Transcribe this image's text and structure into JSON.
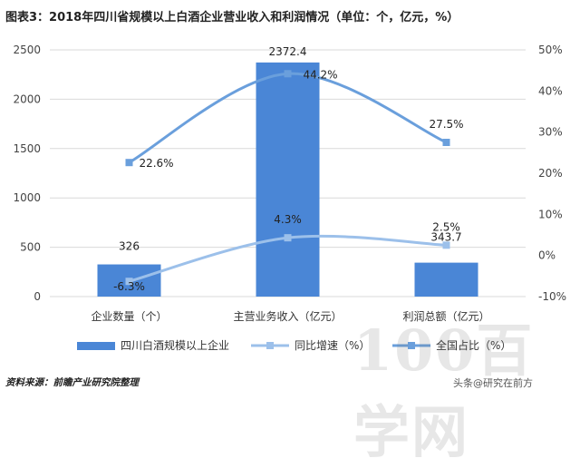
{
  "title": "图表3：2018年四川省规模以上白酒企业营业收入和利润情况（单位：个，亿元，%）",
  "source": "资料来源：前瞻产业研究院整理",
  "watermark": {
    "site": "100百学网",
    "author": "头条@研究在前方"
  },
  "chart_data": {
    "type": "bar",
    "categories": [
      "企业数量（个）",
      "主营业务收入（亿元）",
      "利润总额（亿元）"
    ],
    "y_left": {
      "lim": [
        0,
        2500
      ],
      "ticks": [
        "0",
        "500",
        "1000",
        "1500",
        "2000",
        "2500"
      ]
    },
    "y_right": {
      "lim": [
        -10,
        50
      ],
      "ticks": [
        "-10%",
        "0%",
        "10%",
        "20%",
        "30%",
        "40%",
        "50%"
      ]
    },
    "grid": true,
    "legend_position": "bottom",
    "series": [
      {
        "name": "四川白酒规模以上企业",
        "type": "bar",
        "axis": "left",
        "color": "#4a86d6",
        "values": [
          326,
          2372.4,
          343.7
        ],
        "labels": [
          "326",
          "2372.4",
          "343.7"
        ]
      },
      {
        "name": "同比增速（%）",
        "type": "line",
        "axis": "right",
        "color": "#9cc0ea",
        "values": [
          -6.3,
          4.3,
          2.5
        ],
        "labels": [
          "-6.3%",
          "4.3%",
          "2.5%"
        ]
      },
      {
        "name": "全国占比（%）",
        "type": "line",
        "axis": "right",
        "color": "#6a9fdc",
        "values": [
          22.6,
          44.2,
          27.5
        ],
        "labels": [
          "22.6%",
          "44.2%",
          "27.5%"
        ]
      }
    ]
  }
}
